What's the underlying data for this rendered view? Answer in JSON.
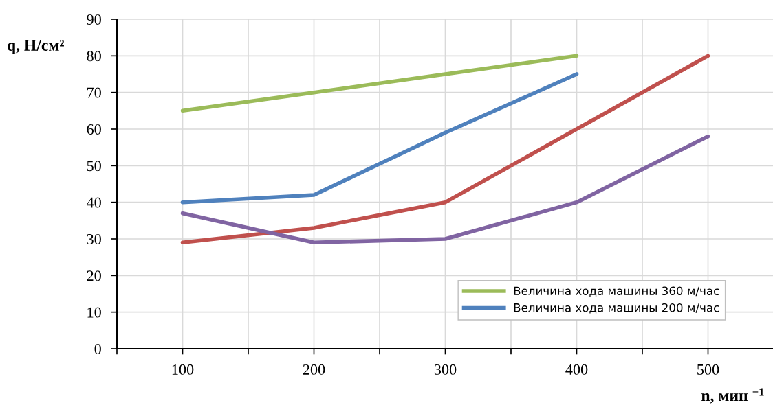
{
  "chart_data": {
    "type": "line",
    "xlabel": "n, мин $^{−1}$",
    "ylabel": "q, Н/см²",
    "xlim": [
      50,
      550
    ],
    "xticks": [
      {
        "value": 50,
        "label": null
      },
      100,
      {
        "value": 150,
        "label": null
      },
      200,
      {
        "value": 250,
        "label": null
      },
      300,
      {
        "value": 350,
        "label": null
      },
      400,
      {
        "value": 450,
        "label": null
      },
      500,
      {
        "value": 550,
        "label": null
      }
    ],
    "ylim": [
      0,
      90
    ],
    "yticks": [
      0,
      10,
      20,
      30,
      40,
      50,
      60,
      70,
      80,
      90
    ],
    "grid": true,
    "legend": "bottom right",
    "marker": "none",
    "line_style": "solid",
    "series": [
      {
        "name": "Величина хода машины 360 м/час",
        "color": "#9bbb59",
        "x": [
          100,
          200,
          300,
          400
        ],
        "values": [
          65,
          70,
          75,
          80
        ]
      },
      {
        "name": "Величина хода машины 200 м/час",
        "color": "#4f81bd",
        "x": [
          100,
          200,
          300,
          400
        ],
        "values": [
          40,
          42,
          59,
          75
        ]
      },
      {
        "color": "#c0504d",
        "x": [
          100,
          200,
          300,
          400,
          500
        ],
        "values": [
          29,
          33,
          40,
          60,
          80
        ]
      },
      {
        "color": "#8064a2",
        "x": [
          100,
          200,
          300,
          400,
          500
        ],
        "values": [
          37,
          29,
          30,
          40,
          58
        ]
      }
    ]
  }
}
